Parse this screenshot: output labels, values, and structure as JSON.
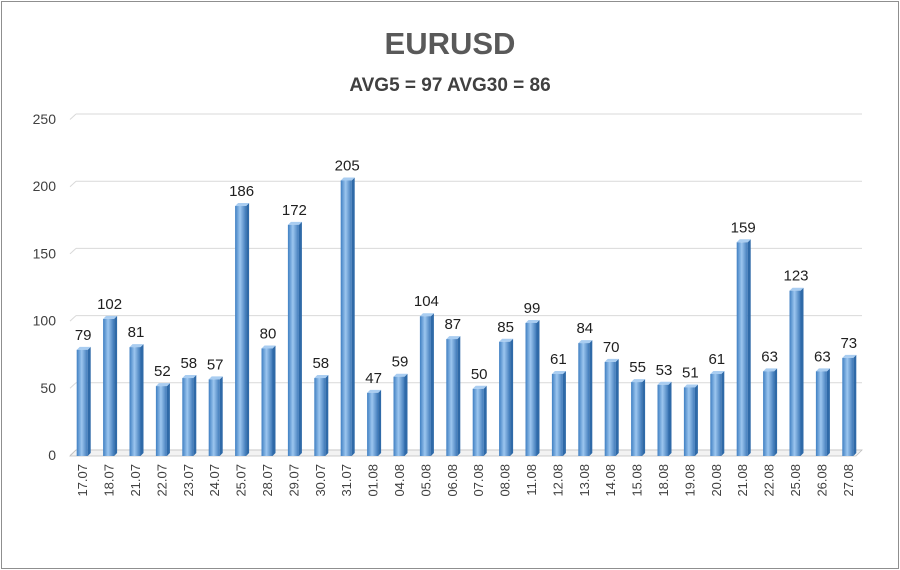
{
  "chart_data": {
    "type": "bar",
    "title": "EURUSD",
    "subtitle": "AVG5 = 97 AVG30 = 86",
    "xlabel": "",
    "ylabel": "",
    "ylim": [
      0,
      250
    ],
    "yticks": [
      0,
      50,
      100,
      150,
      200,
      250
    ],
    "grid": true,
    "legend": "none",
    "bar_color": "#5b9bd5",
    "categories": [
      "17.07",
      "18.07",
      "21.07",
      "22.07",
      "23.07",
      "24.07",
      "25.07",
      "28.07",
      "29.07",
      "30.07",
      "31.07",
      "01.08",
      "04.08",
      "05.08",
      "06.08",
      "07.08",
      "08.08",
      "11.08",
      "12.08",
      "13.08",
      "14.08",
      "15.08",
      "18.08",
      "19.08",
      "20.08",
      "21.08",
      "22.08",
      "25.08",
      "26.08",
      "27.08"
    ],
    "values": [
      79,
      102,
      81,
      52,
      58,
      57,
      186,
      80,
      172,
      58,
      205,
      47,
      59,
      104,
      87,
      50,
      85,
      99,
      61,
      84,
      70,
      55,
      53,
      51,
      61,
      159,
      63,
      123,
      63,
      73
    ]
  }
}
